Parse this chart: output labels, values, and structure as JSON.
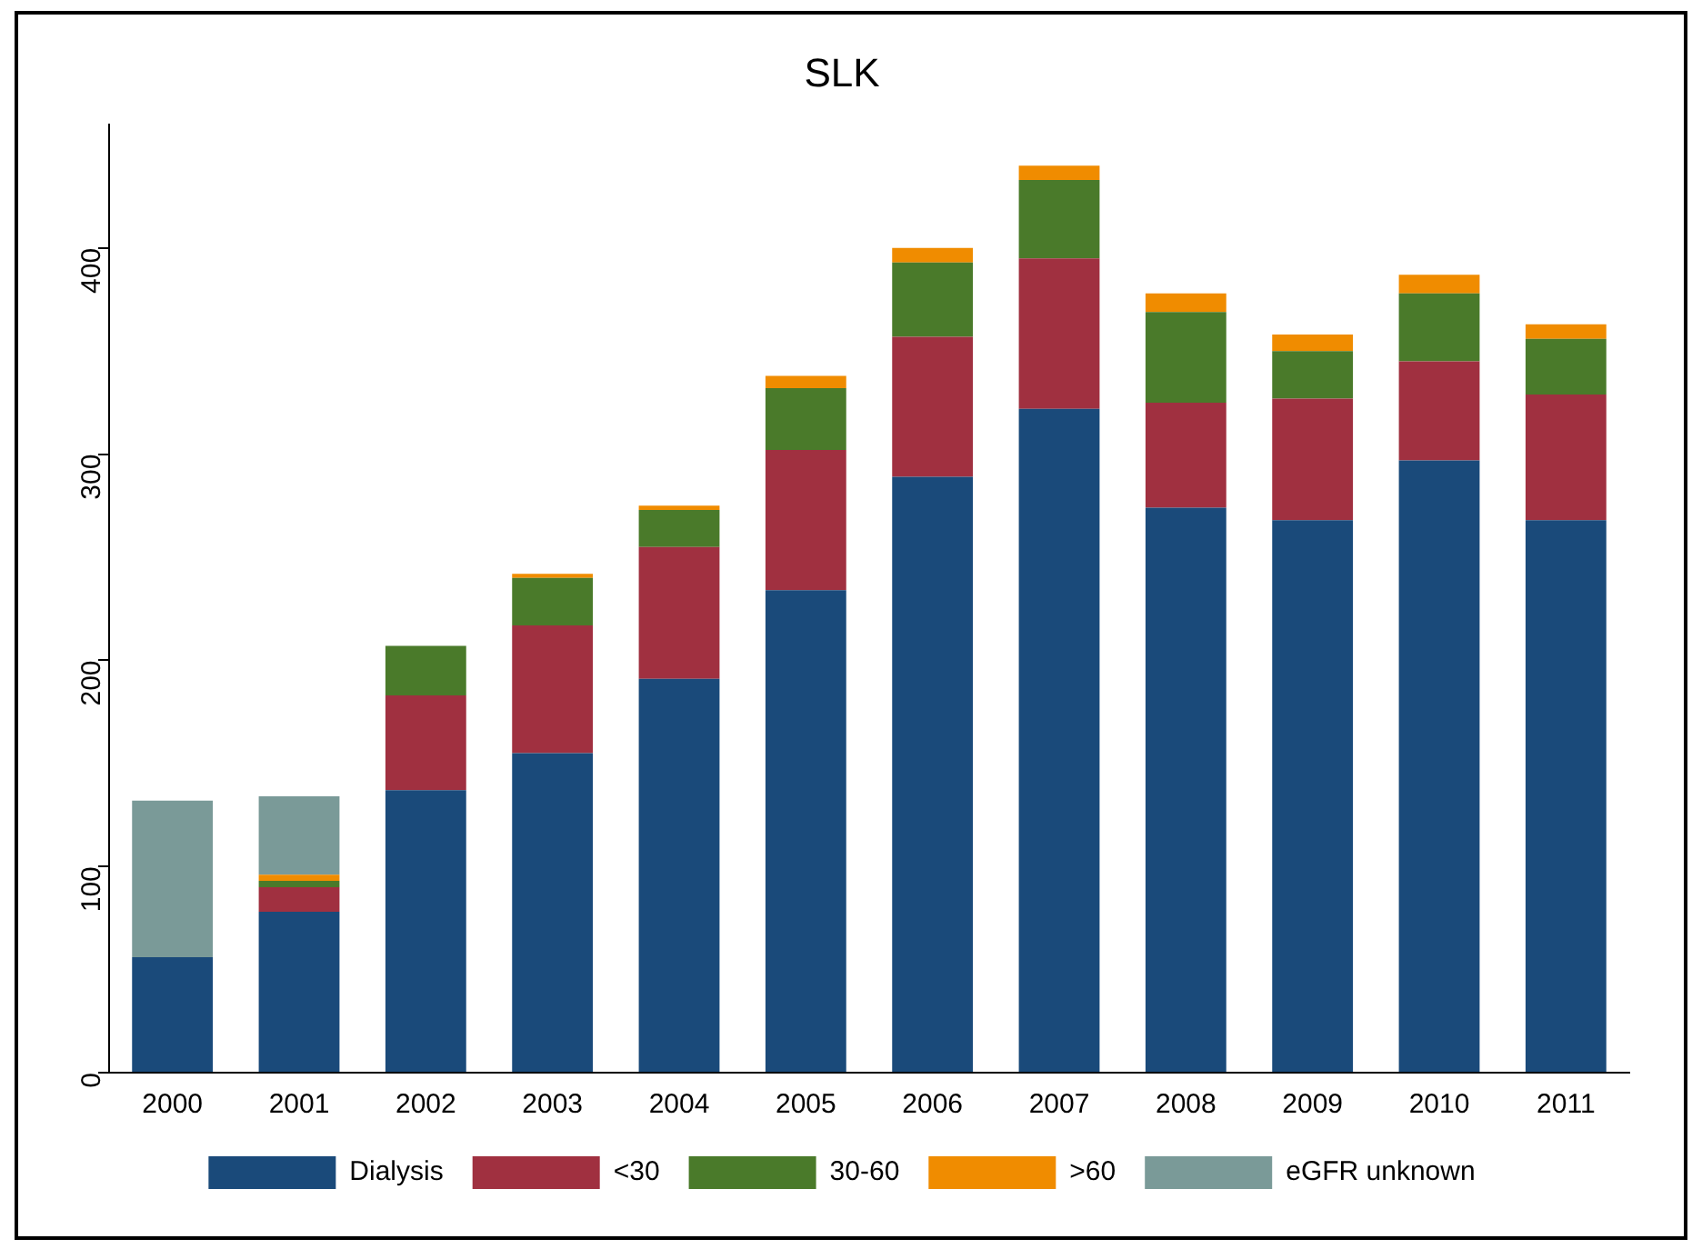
{
  "chart_data": {
    "type": "bar",
    "title": "SLK",
    "stacked": true,
    "legend": "bottom",
    "grid": false,
    "categories": [
      "2000",
      "2001",
      "2002",
      "2003",
      "2004",
      "2005",
      "2006",
      "2007",
      "2008",
      "2009",
      "2010",
      "2011"
    ],
    "ylim": [
      0,
      460
    ],
    "yticks": [
      0,
      100,
      200,
      300,
      400
    ],
    "series": [
      {
        "name": "Dialysis",
        "color": "#1a4a7a",
        "values": [
          56,
          78,
          137,
          155,
          191,
          234,
          289,
          322,
          274,
          268,
          297,
          268
        ]
      },
      {
        "name": "<30",
        "color": "#a03040",
        "values": [
          0,
          12,
          46,
          62,
          64,
          68,
          68,
          73,
          51,
          59,
          48,
          61
        ]
      },
      {
        "name": "30-60",
        "color": "#4a7a2a",
        "values": [
          0,
          3,
          24,
          23,
          18,
          30,
          36,
          38,
          44,
          23,
          33,
          27
        ]
      },
      {
        "name": ">60",
        "color": "#f08c00",
        "values": [
          0,
          3,
          0,
          2,
          2,
          6,
          7,
          7,
          9,
          8,
          9,
          7
        ]
      },
      {
        "name": "eGFR unknown",
        "color": "#7a9a98",
        "values": [
          76,
          38,
          0,
          0,
          0,
          0,
          0,
          0,
          0,
          0,
          0,
          0
        ]
      }
    ]
  }
}
